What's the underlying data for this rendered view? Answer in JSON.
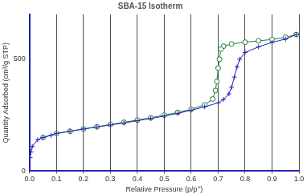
{
  "chart_data": {
    "type": "line",
    "title": "SBA-15 Isotherm",
    "xlabel": "Relative Pressure (p/p°)",
    "ylabel": "Quantity Adsorbed (cm³/g STP)",
    "xlim": [
      0,
      1
    ],
    "xticks": [
      {
        "value": 0,
        "label": "0.0"
      },
      0.1,
      0.2,
      0.3,
      0.4,
      0.5,
      0.6,
      0.7,
      0.8,
      0.9,
      {
        "value": 1,
        "label": "1.0"
      }
    ],
    "ylim": [
      0,
      700
    ],
    "yticks": [
      0,
      500
    ],
    "grid": "x",
    "series": [
      {
        "color": "#2424b0",
        "marker": "cross",
        "line_style": "solid",
        "x": [
          0.002,
          0.005,
          0.01,
          0.03,
          0.05,
          0.08,
          0.1,
          0.15,
          0.2,
          0.25,
          0.3,
          0.35,
          0.4,
          0.45,
          0.5,
          0.55,
          0.6,
          0.65,
          0.7,
          0.72,
          0.74,
          0.75,
          0.76,
          0.77,
          0.78,
          0.8,
          0.85,
          0.9,
          0.95,
          0.99
        ],
        "values": [
          60,
          85,
          110,
          140,
          150,
          160,
          168,
          178,
          188,
          197,
          206,
          215,
          225,
          235,
          246,
          258,
          272,
          287,
          305,
          320,
          345,
          375,
          420,
          465,
          500,
          530,
          555,
          575,
          590,
          610
        ]
      },
      {
        "color": "#1e7a3c",
        "marker": "circle",
        "line_style": "solid",
        "x": [
          0.99,
          0.95,
          0.9,
          0.85,
          0.8,
          0.75,
          0.72,
          0.71,
          0.705,
          0.7,
          0.695,
          0.69,
          0.68,
          0.65,
          0.6,
          0.55,
          0.5,
          0.45,
          0.4,
          0.35,
          0.3,
          0.25,
          0.2,
          0.15,
          0.1,
          0.05
        ],
        "values": [
          610,
          598,
          588,
          582,
          576,
          568,
          558,
          545,
          500,
          460,
          400,
          360,
          322,
          296,
          276,
          262,
          250,
          238,
          228,
          218,
          208,
          198,
          188,
          178,
          168,
          150
        ]
      }
    ]
  }
}
